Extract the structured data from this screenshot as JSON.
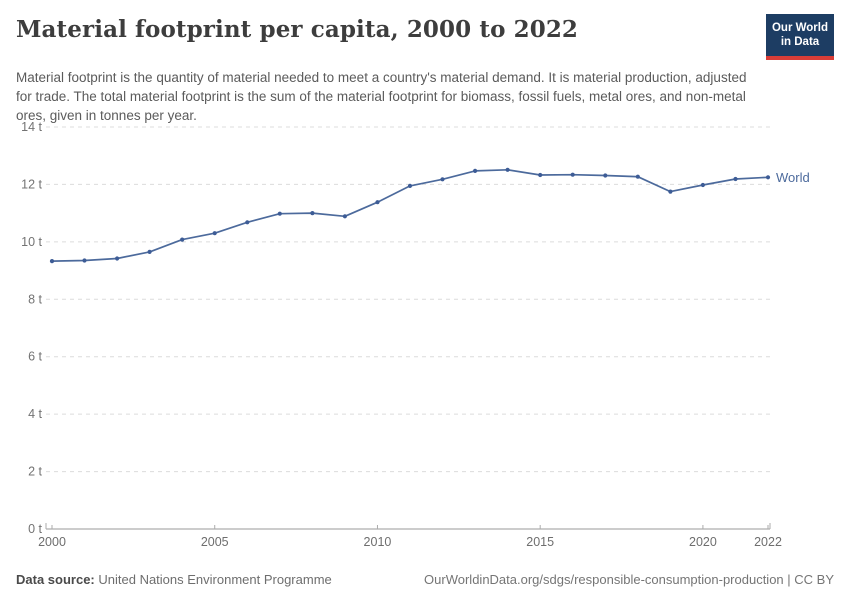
{
  "header": {
    "title": "Material footprint per capita, 2000 to 2022",
    "subtitle": "Material footprint is the quantity of material needed to meet a country's material demand. It is material production, adjusted for trade. The total material footprint is the sum of the material footprint for biomass, fossil fuels, metal ores, and non-metal ores, given in tonnes per year.",
    "logo": {
      "line1": "Our World",
      "line2": "in Data"
    }
  },
  "chart_data": {
    "type": "line",
    "title": "Material footprint per capita, 2000 to 2022",
    "x": [
      2000,
      2001,
      2002,
      2003,
      2004,
      2005,
      2006,
      2007,
      2008,
      2009,
      2010,
      2011,
      2012,
      2013,
      2014,
      2015,
      2016,
      2017,
      2018,
      2019,
      2020,
      2021,
      2022
    ],
    "series": [
      {
        "name": "World",
        "values": [
          9.33,
          9.35,
          9.42,
          9.65,
          10.08,
          10.3,
          10.68,
          10.98,
          11.0,
          10.89,
          11.38,
          11.95,
          12.18,
          12.47,
          12.51,
          12.33,
          12.34,
          12.31,
          12.27,
          11.75,
          11.98,
          12.19,
          12.25
        ]
      }
    ],
    "unit": "tonnes per year",
    "ylim": [
      0,
      14
    ],
    "yticks": [
      0,
      2,
      4,
      6,
      8,
      10,
      12,
      14
    ],
    "ytick_suffix": " t",
    "xticks": [
      2000,
      2005,
      2010,
      2015,
      2020,
      2022
    ],
    "grid": "horizontal-dashed",
    "legend": "end-of-line-label"
  },
  "footer": {
    "source_label": "Data source:",
    "source_value": "United Nations Environment Programme",
    "attribution": "OurWorldinData.org/sdgs/responsible-consumption-production | CC BY"
  },
  "colors": {
    "line": "#4c6a9c",
    "point": "#3d5c96",
    "grid": "#dcdcdc",
    "axis": "#999999",
    "tick_label": "#6e6e6e",
    "y_label": "#737373",
    "logo_bg": "#1d3d63",
    "logo_stripe": "#d93d37",
    "title_text": "#3d3d3d"
  }
}
